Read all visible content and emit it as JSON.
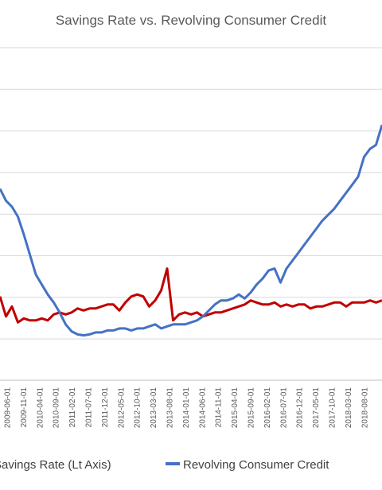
{
  "chart_data": {
    "type": "line",
    "title": "Savings Rate vs. Revolving Consumer Credit",
    "x_tick_labels": [
      "2009-06-01",
      "2009-11-01",
      "2010-04-01",
      "2010-09-01",
      "2011-02-01",
      "2011-07-01",
      "2011-12-01",
      "2012-05-01",
      "2012-10-01",
      "2013-03-01",
      "2013-08-01",
      "2014-01-01",
      "2014-06-01",
      "2014-11-01",
      "2015-04-01",
      "2015-09-01",
      "2016-02-01",
      "2016-07-01",
      "2016-12-01",
      "2017-05-01",
      "2017-10-01",
      "2018-03-01",
      "2018-08-01"
    ],
    "grid": true,
    "legend_position": "bottom",
    "series": [
      {
        "name": "Savings Rate (Lt Axis)",
        "color": "#c00000",
        "values": [
          0.34,
          0.24,
          0.29,
          0.21,
          0.23,
          0.22,
          0.22,
          0.23,
          0.22,
          0.25,
          0.26,
          0.25,
          0.26,
          0.28,
          0.27,
          0.28,
          0.28,
          0.29,
          0.3,
          0.3,
          0.27,
          0.31,
          0.34,
          0.35,
          0.34,
          0.29,
          0.32,
          0.37,
          0.48,
          0.22,
          0.25,
          0.26,
          0.25,
          0.26,
          0.24,
          0.25,
          0.26,
          0.26,
          0.27,
          0.28,
          0.29,
          0.3,
          0.32,
          0.31,
          0.3,
          0.3,
          0.31,
          0.29,
          0.3,
          0.29,
          0.3,
          0.3,
          0.28,
          0.29,
          0.29,
          0.3,
          0.31,
          0.31,
          0.29,
          0.31,
          0.31,
          0.31,
          0.32,
          0.31,
          0.32
        ]
      },
      {
        "name": "Revolving Consumer Credit",
        "color": "#4472c4",
        "values": [
          0.88,
          0.82,
          0.79,
          0.74,
          0.65,
          0.55,
          0.45,
          0.4,
          0.35,
          0.31,
          0.26,
          0.2,
          0.165,
          0.15,
          0.145,
          0.15,
          0.16,
          0.16,
          0.17,
          0.17,
          0.18,
          0.18,
          0.17,
          0.18,
          0.18,
          0.19,
          0.2,
          0.18,
          0.19,
          0.2,
          0.2,
          0.2,
          0.21,
          0.22,
          0.24,
          0.27,
          0.3,
          0.32,
          0.32,
          0.33,
          0.35,
          0.33,
          0.36,
          0.4,
          0.43,
          0.47,
          0.48,
          0.41,
          0.48,
          0.52,
          0.56,
          0.6,
          0.64,
          0.68,
          0.72,
          0.75,
          0.78,
          0.82,
          0.86,
          0.9,
          0.94,
          1.04,
          1.08,
          1.1,
          1.2
        ]
      }
    ]
  }
}
